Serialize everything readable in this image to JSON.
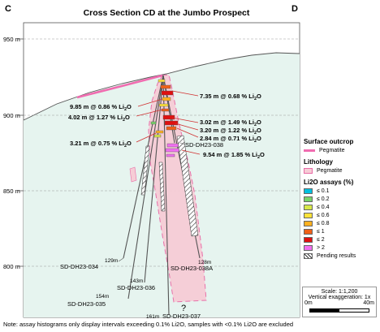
{
  "header": {
    "title": "Cross Section CD at the Jumbo Prospect",
    "left_corner": "C",
    "right_corner": "D"
  },
  "elevations": [
    {
      "label": "950 m",
      "value": 950
    },
    {
      "label": "900 m",
      "value": 900
    },
    {
      "label": "850 m",
      "value": 850
    },
    {
      "label": "800 m",
      "value": 800
    }
  ],
  "intercepts": {
    "i1": {
      "prefix": "7.35 m @ 0.68 % Li",
      "sub": "2",
      "suffix": "O"
    },
    "i2": {
      "prefix": "9.85 m @ 0.86 % Li",
      "sub": "2",
      "suffix": "O"
    },
    "i3": {
      "prefix": "4.02 m @ 1.27 % Li",
      "sub": "2",
      "suffix": "O"
    },
    "i4": {
      "prefix": "3.02 m @ 1.49 % Li",
      "sub": "2",
      "suffix": "O"
    },
    "i5": {
      "prefix": "3.20 m @ 1.22 % Li",
      "sub": "2",
      "suffix": "O"
    },
    "i6": {
      "prefix": "2.84 m @ 0.71 % Li",
      "sub": "2",
      "suffix": "O"
    },
    "i7": {
      "prefix": "3.21 m @ 0.75 % Li",
      "sub": "2",
      "suffix": "O"
    },
    "i8": {
      "prefix": "9.54 m @ 1.85 % Li",
      "sub": "2",
      "suffix": "O"
    }
  },
  "drillholes": {
    "h034": {
      "name": "SD-DH23-034",
      "depth": "129m"
    },
    "h035": {
      "name": "SD-DH23-035",
      "depth": "154m"
    },
    "h036": {
      "name": "SD-DH23-036",
      "depth": "143m"
    },
    "h037": {
      "name": "SD-DH23-037",
      "depth": "161m"
    },
    "h038": {
      "name": "SD-DH23-038"
    },
    "h038a": {
      "name": "SD-DH23-038A",
      "depth": "128m"
    }
  },
  "question_mark": "?",
  "legend": {
    "surface_title": "Surface outcrop",
    "surface_item": "Pegmatite",
    "lithology_title": "Lithology",
    "lithology_item": "Pegmatite",
    "assay_title": "Li2O assays (%)",
    "assays": [
      {
        "label": "≤ 0.1",
        "color": "#00c0e0"
      },
      {
        "label": "≤ 0.2",
        "color": "#7ad36a"
      },
      {
        "label": "≤ 0.4",
        "color": "#d8e84a"
      },
      {
        "label": "≤ 0.6",
        "color": "#ffe23a"
      },
      {
        "label": "≤ 0.8",
        "color": "#ffb020"
      },
      {
        "label": "≤ 1",
        "color": "#f06018"
      },
      {
        "label": "≤ 2",
        "color": "#e01010"
      },
      {
        "label": "> 2",
        "color": "#f070f0"
      },
      {
        "label": "Pending results",
        "color": "hatch"
      }
    ]
  },
  "scale": {
    "scale_text": "Scale: 1:1,200",
    "exaggeration": "Vertical exaggeration: 1x",
    "tick_start": "0m",
    "tick_end": "40m"
  },
  "footnote": "Note: assay histograms only display intervals exceeding 0.1% Li2O, samples with <0.1% Li2O are excluded",
  "colors": {
    "ground": "#e6f4ef",
    "pegmatite_fill": "#f6cdd6",
    "pegmatite_outline": "#e86aa6",
    "outcrop": "#f06cb0"
  }
}
